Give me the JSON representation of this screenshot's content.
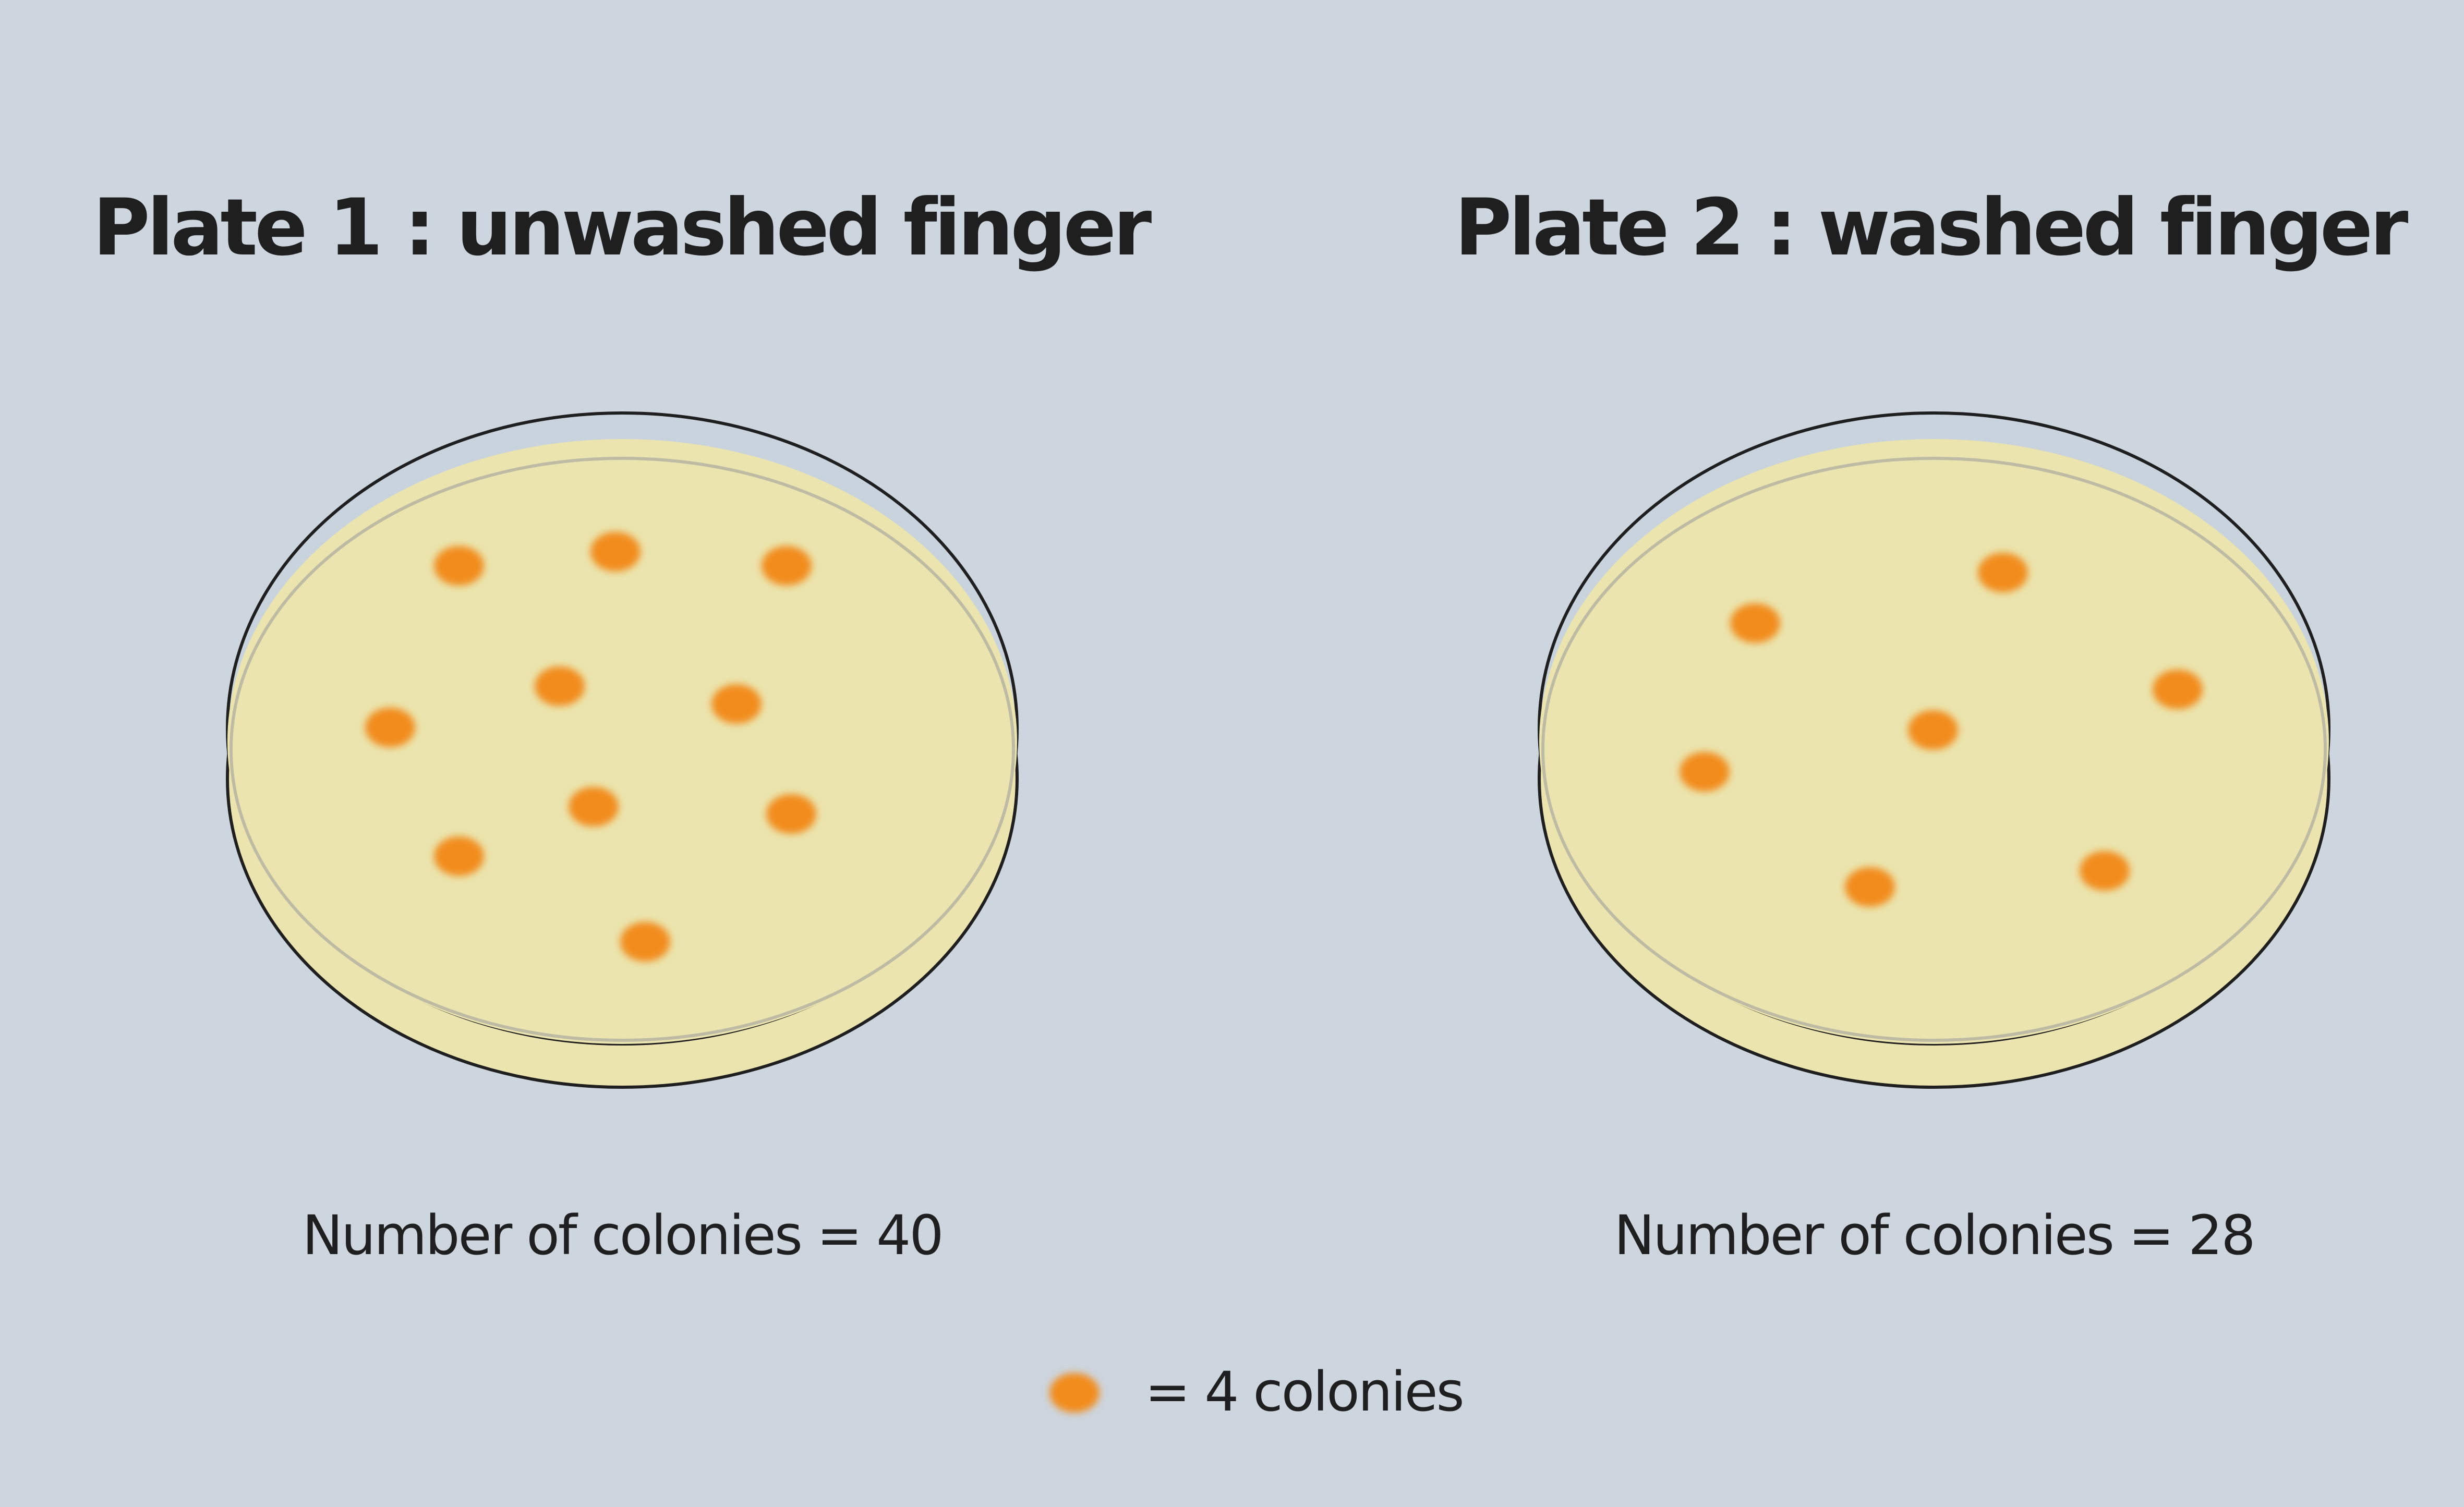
{
  "plates": [
    {
      "title": "Plate 1 : unwashed finger",
      "count_label": "Number of colonies = 40",
      "dots_shown": 10
    },
    {
      "title": "Plate 2 : washed finger",
      "count_label": "Number of colonies = 28",
      "dots_shown": 7
    }
  ],
  "legend": {
    "label": "= 4 colonies",
    "colonies_per_dot": 4
  },
  "colors": {
    "background": "#cdd5df",
    "agar": "#ebe4ae",
    "colony": "#f28c1e",
    "outline": "#1f1f1f"
  }
}
